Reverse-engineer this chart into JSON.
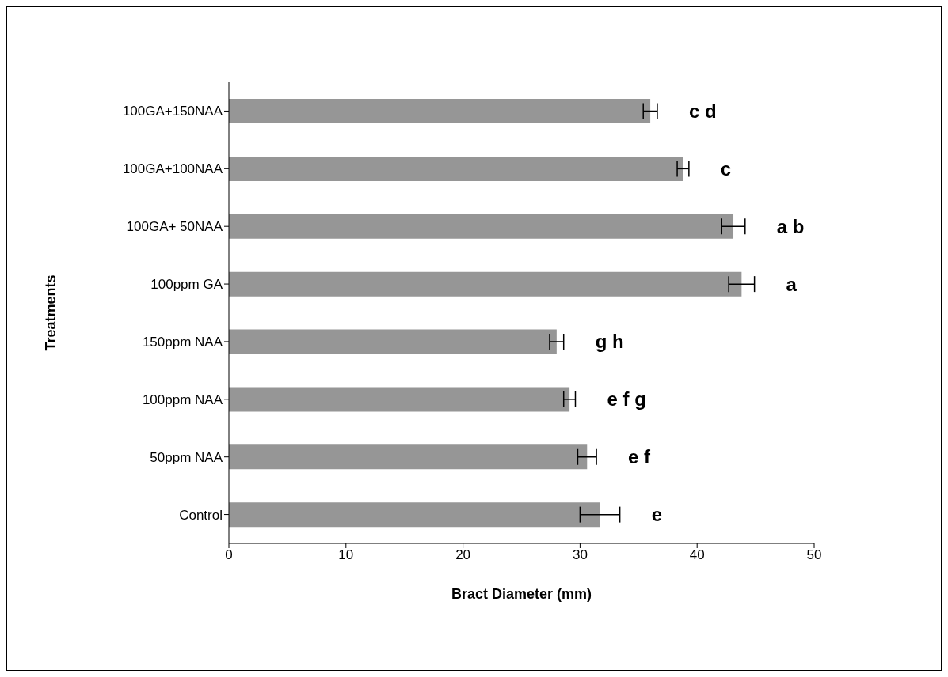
{
  "chart_data": {
    "type": "bar",
    "orientation": "horizontal",
    "xlabel": "Bract Diameter (mm)",
    "ylabel": "Treatments",
    "categories": [
      "100GA+150NAA",
      "100GA+100NAA",
      "100GA+ 50NAA",
      "100ppm GA",
      "150ppm NAA",
      "100ppm NAA",
      "50ppm NAA",
      "Control"
    ],
    "values": [
      36.0,
      38.8,
      43.1,
      43.8,
      28.0,
      29.1,
      30.6,
      31.7
    ],
    "errors": [
      0.6,
      0.5,
      1.0,
      1.1,
      0.6,
      0.5,
      0.8,
      1.7
    ],
    "color": "#969696",
    "xlim": [
      0,
      50
    ],
    "xticks": [
      0,
      10,
      20,
      30,
      40,
      50
    ],
    "grid": false,
    "legend": false,
    "annotations": [
      "c d",
      "c",
      "a b",
      "a",
      "g h",
      "e f g",
      "e f",
      "e"
    ]
  }
}
